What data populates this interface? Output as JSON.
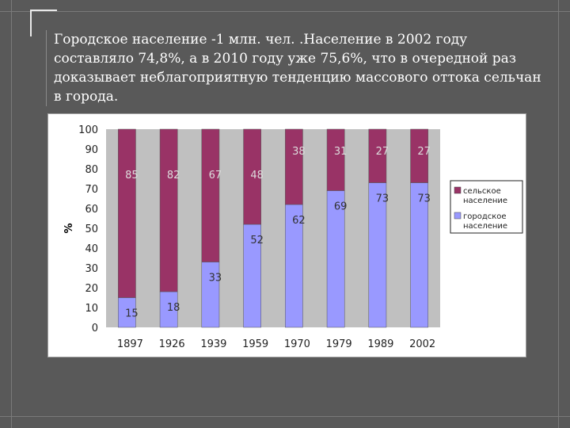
{
  "slide": {
    "text": "Городское население -1 млн. чел. .Население в 2002 году составляло 74,8%, а в 2010 году уже 75,6%, что в очередной раз доказывает неблагоприятную тенденцию массового оттока сельчан в города."
  },
  "colors": {
    "background": "#595959",
    "rural": "#993366",
    "urban": "#9999ff",
    "plot_bg": "#c0c0c0"
  },
  "chart_data": {
    "type": "bar",
    "stacked": true,
    "categories": [
      "1897",
      "1926",
      "1939",
      "1959",
      "1970",
      "1979",
      "1989",
      "2002"
    ],
    "series": [
      {
        "name": "городское население",
        "values": [
          15,
          18,
          33,
          52,
          62,
          69,
          73,
          73
        ]
      },
      {
        "name": "сельское население",
        "values": [
          85,
          82,
          67,
          48,
          38,
          31,
          27,
          27
        ]
      }
    ],
    "ylabel": "%",
    "ylim": [
      0,
      100
    ],
    "yticks": [
      0,
      10,
      20,
      30,
      40,
      50,
      60,
      70,
      80,
      90,
      100
    ],
    "grid": false,
    "legend": "right"
  }
}
